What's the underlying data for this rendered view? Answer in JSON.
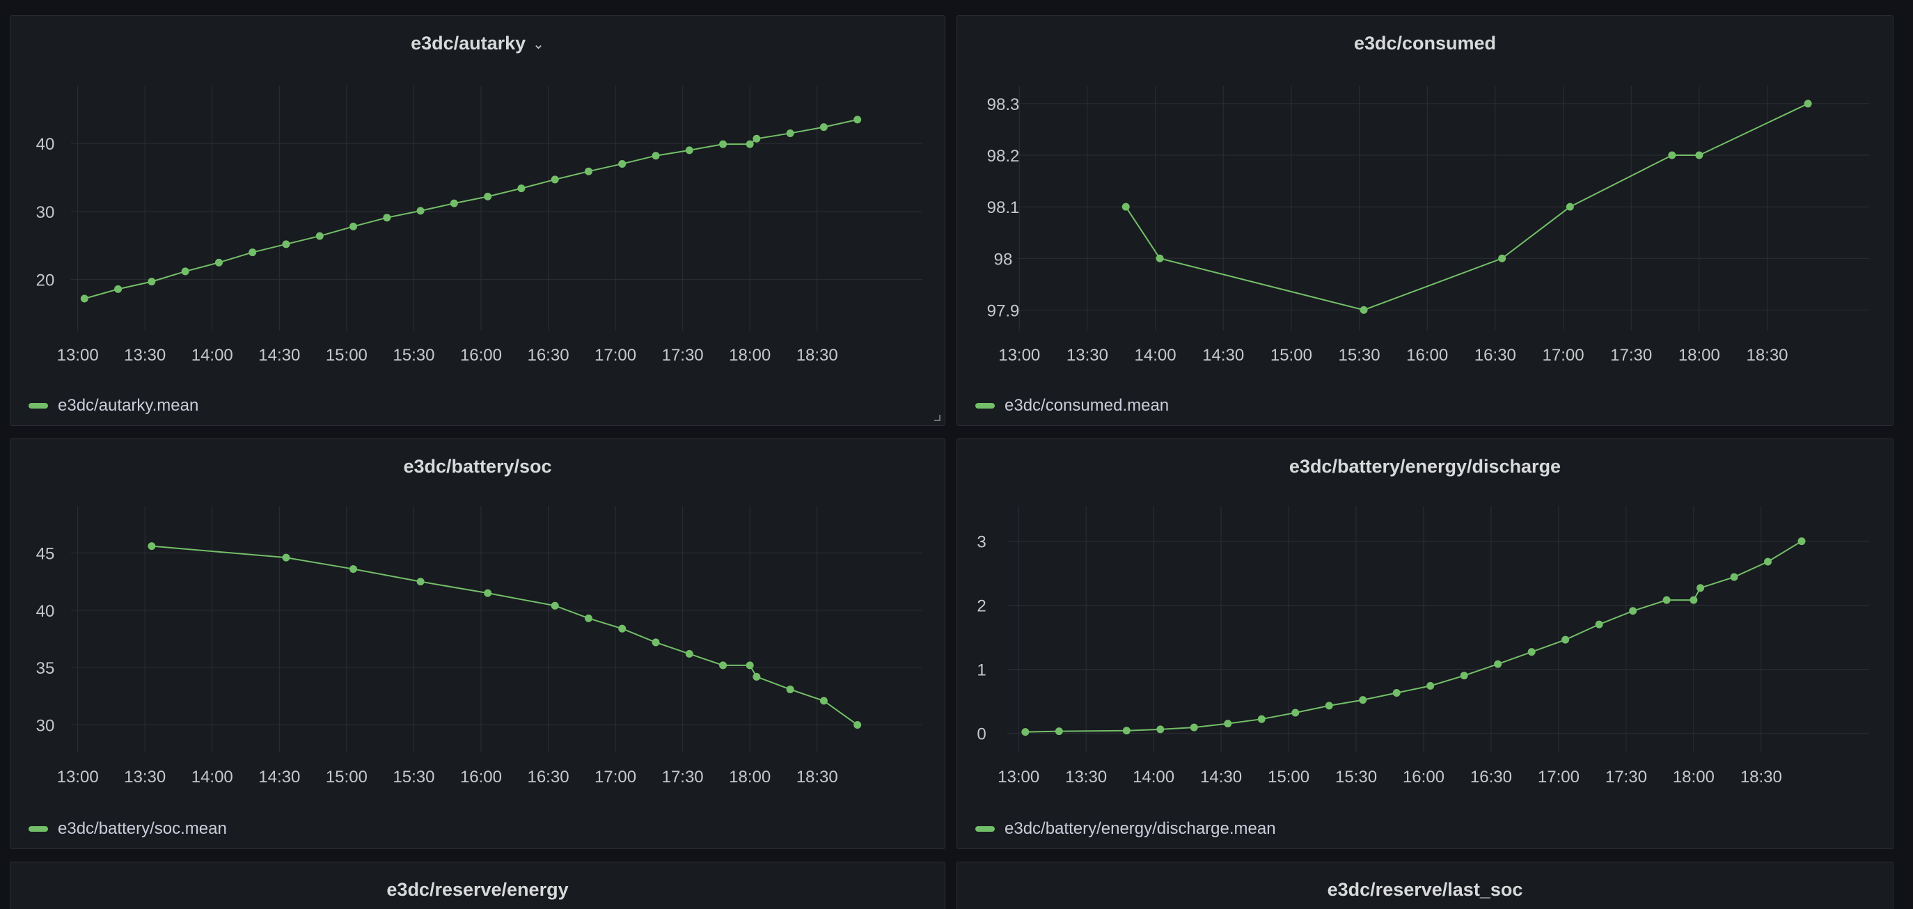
{
  "colors": {
    "series": "#73bf69",
    "grid": "#2c2f35",
    "tick": "#c7c8ca"
  },
  "panels": [
    {
      "title": "e3dc/autarky",
      "has_menu": true,
      "legend": "e3dc/autarky.mean",
      "chart_data": {
        "type": "line",
        "x_ticks": [
          "13:00",
          "13:30",
          "14:00",
          "14:30",
          "15:00",
          "15:30",
          "16:00",
          "16:30",
          "17:00",
          "17:30",
          "18:00",
          "18:30"
        ],
        "y_ticks": [
          20,
          30,
          40
        ],
        "xlim": [
          "12:57",
          "19:17"
        ],
        "ylim": [
          12.5,
          48.5
        ],
        "series": [
          {
            "name": "e3dc/autarky.mean",
            "x": [
              "13:03",
              "13:18",
              "13:33",
              "13:48",
              "14:03",
              "14:18",
              "14:33",
              "14:48",
              "15:03",
              "15:18",
              "15:33",
              "15:48",
              "16:03",
              "16:18",
              "16:33",
              "16:48",
              "17:03",
              "17:18",
              "17:33",
              "17:48",
              "18:00",
              "18:03",
              "18:18",
              "18:33",
              "18:48"
            ],
            "values": [
              17.2,
              18.6,
              19.7,
              21.2,
              22.5,
              24.0,
              25.2,
              26.4,
              27.8,
              29.1,
              30.1,
              31.2,
              32.2,
              33.4,
              34.7,
              35.9,
              37.0,
              38.2,
              39.0,
              39.9,
              39.9,
              40.7,
              41.5,
              42.4,
              43.5
            ]
          }
        ]
      }
    },
    {
      "title": "e3dc/consumed",
      "has_menu": false,
      "legend": "e3dc/consumed.mean",
      "chart_data": {
        "type": "line",
        "x_ticks": [
          "13:00",
          "13:30",
          "14:00",
          "14:30",
          "15:00",
          "15:30",
          "16:00",
          "16:30",
          "17:00",
          "17:30",
          "18:00",
          "18:30"
        ],
        "y_ticks": [
          "97.9",
          "98",
          "98.1",
          "98.2",
          "98.3"
        ],
        "xlim": [
          "12:59",
          "19:15"
        ],
        "ylim": [
          97.86,
          98.335
        ],
        "series": [
          {
            "name": "e3dc/consumed.mean",
            "x": [
              "13:47",
              "14:02",
              "15:32",
              "16:33",
              "17:03",
              "17:48",
              "18:00",
              "18:48"
            ],
            "values": [
              98.1,
              98.0,
              97.9,
              98.0,
              98.1,
              98.2,
              98.2,
              98.3
            ]
          }
        ]
      }
    },
    {
      "title": "e3dc/battery/soc",
      "has_menu": false,
      "legend": "e3dc/battery/soc.mean",
      "chart_data": {
        "type": "line",
        "x_ticks": [
          "13:00",
          "13:30",
          "14:00",
          "14:30",
          "15:00",
          "15:30",
          "16:00",
          "16:30",
          "17:00",
          "17:30",
          "18:00",
          "18:30"
        ],
        "y_ticks": [
          30,
          35,
          40,
          45
        ],
        "xlim": [
          "12:57",
          "19:17"
        ],
        "ylim": [
          27.6,
          49.1
        ],
        "series": [
          {
            "name": "e3dc/battery/soc.mean",
            "x": [
              "13:33",
              "14:33",
              "15:03",
              "15:33",
              "16:03",
              "16:33",
              "16:48",
              "17:03",
              "17:18",
              "17:33",
              "17:48",
              "18:00",
              "18:03",
              "18:18",
              "18:33",
              "18:48"
            ],
            "values": [
              45.6,
              44.6,
              43.6,
              42.5,
              41.5,
              40.4,
              39.3,
              38.4,
              37.2,
              36.2,
              35.2,
              35.2,
              34.2,
              33.1,
              32.1,
              30.0
            ]
          }
        ]
      }
    },
    {
      "title": "e3dc/battery/energy/discharge",
      "has_menu": false,
      "legend": "e3dc/battery/energy/discharge.mean",
      "chart_data": {
        "type": "line",
        "x_ticks": [
          "13:00",
          "13:30",
          "14:00",
          "14:30",
          "15:00",
          "15:30",
          "16:00",
          "16:30",
          "17:00",
          "17:30",
          "18:00",
          "18:30"
        ],
        "y_ticks": [
          0,
          1,
          2,
          3
        ],
        "xlim": [
          "12:55",
          "19:18"
        ],
        "ylim": [
          -0.3,
          3.55
        ],
        "series": [
          {
            "name": "e3dc/battery/energy/discharge.mean",
            "x": [
              "13:03",
              "13:18",
              "13:48",
              "14:03",
              "14:18",
              "14:33",
              "14:48",
              "15:03",
              "15:18",
              "15:33",
              "15:48",
              "16:03",
              "16:18",
              "16:33",
              "16:48",
              "17:03",
              "17:18",
              "17:33",
              "17:48",
              "18:00",
              "18:03",
              "18:18",
              "18:33",
              "18:48"
            ],
            "values": [
              0.02,
              0.03,
              0.04,
              0.06,
              0.09,
              0.15,
              0.22,
              0.32,
              0.43,
              0.52,
              0.63,
              0.74,
              0.9,
              1.08,
              1.27,
              1.46,
              1.7,
              1.91,
              2.08,
              2.08,
              2.27,
              2.44,
              2.68,
              3.0
            ]
          }
        ]
      }
    },
    {
      "title": "e3dc/reserve/energy",
      "has_menu": false,
      "legend": "",
      "chart_data": null
    },
    {
      "title": "e3dc/reserve/last_soc",
      "has_menu": false,
      "legend": "",
      "chart_data": null
    }
  ]
}
